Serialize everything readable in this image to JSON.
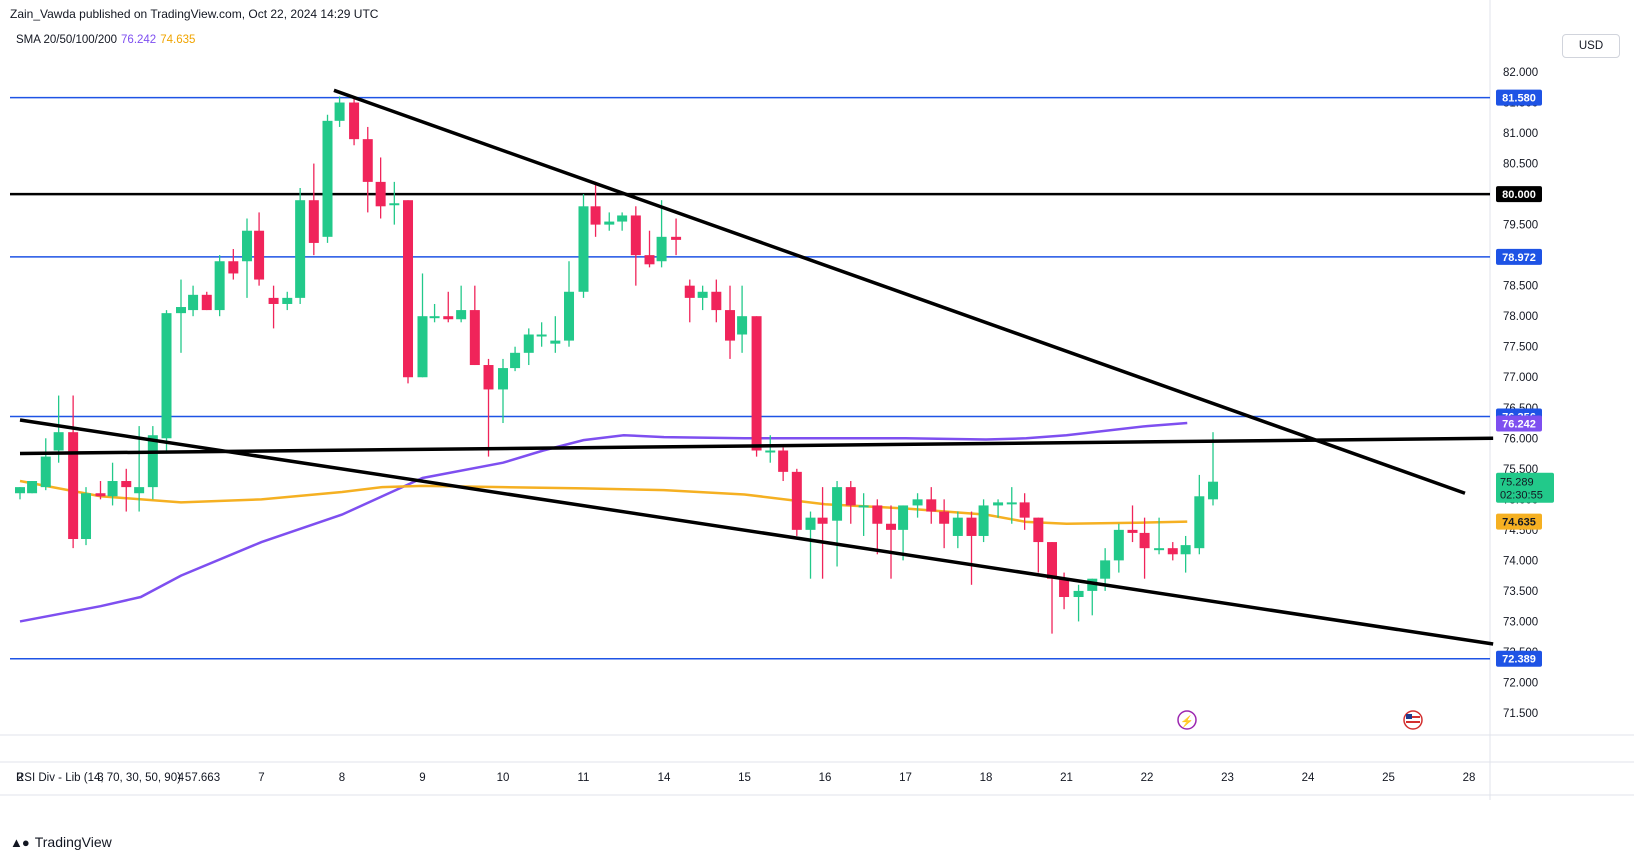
{
  "header": {
    "publisher": "Zain_Vawda published on TradingView.com, Oct 22, 2024 14:29 UTC"
  },
  "indicator": {
    "label": "SMA 20/50/100/200",
    "value_purple": "76.242",
    "value_orange": "74.635"
  },
  "rsi": {
    "label": "RSI Div - Lib (14, 70, 30, 50, 90)",
    "value": "57.663"
  },
  "currency": "USD",
  "brand": {
    "name": "TradingView"
  },
  "colors": {
    "up": "#22c98a",
    "down": "#f0245a",
    "blue_level": "#1e53e5",
    "black_level": "#000000",
    "sma_purple": "#7e4ff0",
    "sma_orange": "#f5b022",
    "price_badge": "#22c98a"
  },
  "chart_data": {
    "type": "candlestick",
    "instrument_currency": "USD",
    "y_range": [
      71.0,
      82.4
    ],
    "y_ticks": [
      "82.000",
      "81.500",
      "81.000",
      "80.500",
      "80.000",
      "79.500",
      "79.000",
      "78.500",
      "78.000",
      "77.500",
      "77.000",
      "76.500",
      "76.000",
      "75.500",
      "75.000",
      "74.500",
      "74.000",
      "73.500",
      "73.000",
      "72.500",
      "72.000",
      "71.500"
    ],
    "x_ticks": [
      "2",
      "3",
      "4",
      "7",
      "8",
      "9",
      "10",
      "11",
      "14",
      "15",
      "16",
      "17",
      "18",
      "21",
      "22",
      "23",
      "24",
      "25",
      "28"
    ],
    "horizontal_levels": [
      {
        "value": 81.58,
        "label": "81.580",
        "color": "blue"
      },
      {
        "value": 80.0,
        "label": "80.000",
        "color": "black"
      },
      {
        "value": 78.972,
        "label": "78.972",
        "color": "blue"
      },
      {
        "value": 76.356,
        "label": "76.356",
        "color": "blue"
      },
      {
        "value": 72.389,
        "label": "72.389",
        "color": "blue"
      }
    ],
    "trendlines": [
      {
        "from": [
          3.9,
          81.7
        ],
        "to": [
          17.95,
          75.1
        ]
      },
      {
        "from": [
          0,
          76.3
        ],
        "to": [
          18.3,
          72.63
        ]
      },
      {
        "from": [
          0,
          75.75
        ],
        "to": [
          18.3,
          76.0
        ]
      }
    ],
    "sma_purple": {
      "label": "76.242",
      "points": [
        [
          0,
          73.0
        ],
        [
          1,
          73.25
        ],
        [
          1.5,
          73.4
        ],
        [
          2,
          73.75
        ],
        [
          3,
          74.3
        ],
        [
          4,
          74.75
        ],
        [
          4.5,
          75.05
        ],
        [
          5,
          75.35
        ],
        [
          6,
          75.6
        ],
        [
          6.5,
          75.8
        ],
        [
          7,
          75.97
        ],
        [
          7.5,
          76.05
        ],
        [
          8,
          76.02
        ],
        [
          9,
          76.0
        ],
        [
          10,
          76.0
        ],
        [
          11,
          76.0
        ],
        [
          12,
          75.98
        ],
        [
          12.5,
          76.0
        ],
        [
          13,
          76.05
        ],
        [
          14,
          76.2
        ],
        [
          14.5,
          76.25
        ]
      ]
    },
    "sma_orange": {
      "label": "74.635",
      "points": [
        [
          0,
          75.3
        ],
        [
          1,
          75.05
        ],
        [
          2,
          74.95
        ],
        [
          3,
          75.0
        ],
        [
          4,
          75.12
        ],
        [
          4.5,
          75.2
        ],
        [
          5,
          75.22
        ],
        [
          6,
          75.2
        ],
        [
          7,
          75.18
        ],
        [
          8,
          75.15
        ],
        [
          9,
          75.08
        ],
        [
          10,
          74.92
        ],
        [
          11,
          74.85
        ],
        [
          12,
          74.75
        ],
        [
          12.5,
          74.63
        ],
        [
          13,
          74.6
        ],
        [
          14,
          74.62
        ],
        [
          14.5,
          74.635
        ]
      ]
    },
    "candles": [
      {
        "x": 0.0,
        "o": 75.1,
        "h": 75.2,
        "l": 75.0,
        "c": 75.2
      },
      {
        "x": 0.15,
        "o": 75.1,
        "h": 75.3,
        "l": 75.1,
        "c": 75.3
      },
      {
        "x": 0.32,
        "o": 75.2,
        "h": 76.0,
        "l": 75.15,
        "c": 75.7
      },
      {
        "x": 0.48,
        "o": 75.8,
        "h": 76.7,
        "l": 75.6,
        "c": 76.1
      },
      {
        "x": 0.66,
        "o": 76.1,
        "h": 76.7,
        "l": 74.2,
        "c": 74.35
      },
      {
        "x": 0.82,
        "o": 74.35,
        "h": 75.2,
        "l": 74.25,
        "c": 75.1
      },
      {
        "x": 1.0,
        "o": 75.1,
        "h": 75.3,
        "l": 75.0,
        "c": 75.05
      },
      {
        "x": 1.15,
        "o": 75.05,
        "h": 75.6,
        "l": 74.9,
        "c": 75.3
      },
      {
        "x": 1.32,
        "o": 75.3,
        "h": 75.5,
        "l": 74.8,
        "c": 75.2
      },
      {
        "x": 1.48,
        "o": 75.1,
        "h": 76.2,
        "l": 74.8,
        "c": 75.2
      },
      {
        "x": 1.65,
        "o": 75.2,
        "h": 76.2,
        "l": 75.0,
        "c": 76.05
      },
      {
        "x": 1.82,
        "o": 76.0,
        "h": 78.1,
        "l": 75.8,
        "c": 78.05
      },
      {
        "x": 2.0,
        "o": 78.05,
        "h": 78.6,
        "l": 77.4,
        "c": 78.15
      },
      {
        "x": 2.15,
        "o": 78.1,
        "h": 78.5,
        "l": 78.0,
        "c": 78.35
      },
      {
        "x": 2.32,
        "o": 78.35,
        "h": 78.4,
        "l": 78.1,
        "c": 78.1
      },
      {
        "x": 2.48,
        "o": 78.1,
        "h": 79.0,
        "l": 78.0,
        "c": 78.9
      },
      {
        "x": 2.65,
        "o": 78.9,
        "h": 79.1,
        "l": 78.6,
        "c": 78.7
      },
      {
        "x": 2.82,
        "o": 78.9,
        "h": 79.6,
        "l": 78.3,
        "c": 79.4
      },
      {
        "x": 2.97,
        "o": 79.4,
        "h": 79.7,
        "l": 78.5,
        "c": 78.6
      },
      {
        "x": 3.15,
        "o": 78.3,
        "h": 78.5,
        "l": 77.8,
        "c": 78.2
      },
      {
        "x": 3.32,
        "o": 78.2,
        "h": 78.4,
        "l": 78.1,
        "c": 78.3
      },
      {
        "x": 3.48,
        "o": 78.3,
        "h": 80.1,
        "l": 78.2,
        "c": 79.9
      },
      {
        "x": 3.65,
        "o": 79.9,
        "h": 80.5,
        "l": 79.0,
        "c": 79.2
      },
      {
        "x": 3.82,
        "o": 79.3,
        "h": 81.3,
        "l": 79.2,
        "c": 81.2
      },
      {
        "x": 3.97,
        "o": 81.2,
        "h": 81.6,
        "l": 81.1,
        "c": 81.5
      },
      {
        "x": 4.15,
        "o": 81.5,
        "h": 81.6,
        "l": 80.8,
        "c": 80.9
      },
      {
        "x": 4.32,
        "o": 80.9,
        "h": 81.1,
        "l": 79.7,
        "c": 80.2
      },
      {
        "x": 4.48,
        "o": 80.2,
        "h": 80.6,
        "l": 79.6,
        "c": 79.8
      },
      {
        "x": 4.65,
        "o": 79.85,
        "h": 80.2,
        "l": 79.5,
        "c": 79.85
      },
      {
        "x": 4.82,
        "o": 79.9,
        "h": 79.9,
        "l": 76.9,
        "c": 77.0
      },
      {
        "x": 5.0,
        "o": 77.0,
        "h": 78.7,
        "l": 77.0,
        "c": 78.0
      },
      {
        "x": 5.15,
        "o": 78.0,
        "h": 78.2,
        "l": 77.9,
        "c": 78.0
      },
      {
        "x": 5.32,
        "o": 78.0,
        "h": 78.4,
        "l": 77.9,
        "c": 77.95
      },
      {
        "x": 5.48,
        "o": 77.95,
        "h": 78.5,
        "l": 77.9,
        "c": 78.1
      },
      {
        "x": 5.65,
        "o": 78.1,
        "h": 78.5,
        "l": 77.2,
        "c": 77.2
      },
      {
        "x": 5.82,
        "o": 77.2,
        "h": 77.3,
        "l": 75.7,
        "c": 76.8
      },
      {
        "x": 6.0,
        "o": 76.8,
        "h": 77.3,
        "l": 76.25,
        "c": 77.15
      },
      {
        "x": 6.15,
        "o": 77.15,
        "h": 77.5,
        "l": 77.1,
        "c": 77.4
      },
      {
        "x": 6.32,
        "o": 77.4,
        "h": 77.8,
        "l": 77.2,
        "c": 77.7
      },
      {
        "x": 6.48,
        "o": 77.7,
        "h": 77.9,
        "l": 77.5,
        "c": 77.7
      },
      {
        "x": 6.65,
        "o": 77.55,
        "h": 78.0,
        "l": 77.4,
        "c": 77.6
      },
      {
        "x": 6.82,
        "o": 77.6,
        "h": 78.9,
        "l": 77.5,
        "c": 78.4
      },
      {
        "x": 7.0,
        "o": 78.4,
        "h": 80.0,
        "l": 78.3,
        "c": 79.8
      },
      {
        "x": 7.15,
        "o": 79.8,
        "h": 80.2,
        "l": 79.3,
        "c": 79.5
      },
      {
        "x": 7.32,
        "o": 79.5,
        "h": 79.7,
        "l": 79.4,
        "c": 79.55
      },
      {
        "x": 7.48,
        "o": 79.55,
        "h": 79.7,
        "l": 79.4,
        "c": 79.65
      },
      {
        "x": 7.65,
        "o": 79.65,
        "h": 79.8,
        "l": 78.5,
        "c": 79.0
      },
      {
        "x": 7.82,
        "o": 79.0,
        "h": 79.4,
        "l": 78.8,
        "c": 78.85
      },
      {
        "x": 7.97,
        "o": 78.9,
        "h": 79.9,
        "l": 78.8,
        "c": 79.3
      },
      {
        "x": 8.15,
        "o": 79.3,
        "h": 79.6,
        "l": 79.0,
        "c": 79.25
      },
      {
        "x": 8.32,
        "o": 78.5,
        "h": 78.6,
        "l": 77.9,
        "c": 78.3
      },
      {
        "x": 8.48,
        "o": 78.3,
        "h": 78.5,
        "l": 78.1,
        "c": 78.4
      },
      {
        "x": 8.65,
        "o": 78.4,
        "h": 78.6,
        "l": 77.9,
        "c": 78.1
      },
      {
        "x": 8.82,
        "o": 78.1,
        "h": 78.5,
        "l": 77.3,
        "c": 77.6
      },
      {
        "x": 8.97,
        "o": 77.7,
        "h": 78.5,
        "l": 77.4,
        "c": 78.0
      },
      {
        "x": 9.15,
        "o": 78.0,
        "h": 78.0,
        "l": 75.7,
        "c": 75.8
      },
      {
        "x": 9.32,
        "o": 75.8,
        "h": 76.05,
        "l": 75.6,
        "c": 75.8
      },
      {
        "x": 9.48,
        "o": 75.8,
        "h": 75.85,
        "l": 75.3,
        "c": 75.45
      },
      {
        "x": 9.65,
        "o": 75.45,
        "h": 75.5,
        "l": 74.4,
        "c": 74.5
      },
      {
        "x": 9.82,
        "o": 74.5,
        "h": 74.8,
        "l": 73.7,
        "c": 74.7
      },
      {
        "x": 9.97,
        "o": 74.7,
        "h": 75.2,
        "l": 73.7,
        "c": 74.6
      },
      {
        "x": 10.15,
        "o": 74.65,
        "h": 75.3,
        "l": 73.9,
        "c": 75.2
      },
      {
        "x": 10.32,
        "o": 75.2,
        "h": 75.3,
        "l": 74.6,
        "c": 74.9
      },
      {
        "x": 10.48,
        "o": 74.9,
        "h": 75.1,
        "l": 74.4,
        "c": 74.9
      },
      {
        "x": 10.65,
        "o": 74.9,
        "h": 75.0,
        "l": 74.1,
        "c": 74.6
      },
      {
        "x": 10.82,
        "o": 74.6,
        "h": 74.9,
        "l": 73.7,
        "c": 74.5
      },
      {
        "x": 10.97,
        "o": 74.5,
        "h": 74.9,
        "l": 74.0,
        "c": 74.9
      },
      {
        "x": 11.15,
        "o": 74.9,
        "h": 75.1,
        "l": 74.7,
        "c": 75.0
      },
      {
        "x": 11.32,
        "o": 75.0,
        "h": 75.2,
        "l": 74.6,
        "c": 74.8
      },
      {
        "x": 11.48,
        "o": 74.8,
        "h": 75.0,
        "l": 74.2,
        "c": 74.6
      },
      {
        "x": 11.65,
        "o": 74.4,
        "h": 74.8,
        "l": 74.2,
        "c": 74.7
      },
      {
        "x": 11.82,
        "o": 74.7,
        "h": 74.8,
        "l": 73.6,
        "c": 74.4
      },
      {
        "x": 11.97,
        "o": 74.4,
        "h": 75.0,
        "l": 74.3,
        "c": 74.9
      },
      {
        "x": 12.15,
        "o": 74.9,
        "h": 75.0,
        "l": 74.7,
        "c": 74.95
      },
      {
        "x": 12.32,
        "o": 74.95,
        "h": 75.2,
        "l": 74.6,
        "c": 74.95
      },
      {
        "x": 12.48,
        "o": 74.95,
        "h": 75.1,
        "l": 74.5,
        "c": 74.7
      },
      {
        "x": 12.65,
        "o": 74.7,
        "h": 74.7,
        "l": 73.8,
        "c": 74.3
      },
      {
        "x": 12.82,
        "o": 74.3,
        "h": 74.3,
        "l": 72.8,
        "c": 73.7
      },
      {
        "x": 12.97,
        "o": 73.7,
        "h": 73.8,
        "l": 73.2,
        "c": 73.4
      },
      {
        "x": 13.15,
        "o": 73.4,
        "h": 73.6,
        "l": 73.0,
        "c": 73.5
      },
      {
        "x": 13.32,
        "o": 73.5,
        "h": 73.7,
        "l": 73.1,
        "c": 73.7
      },
      {
        "x": 13.48,
        "o": 73.7,
        "h": 74.2,
        "l": 73.5,
        "c": 74.0
      },
      {
        "x": 13.65,
        "o": 74.0,
        "h": 74.6,
        "l": 73.8,
        "c": 74.5
      },
      {
        "x": 13.82,
        "o": 74.5,
        "h": 74.9,
        "l": 74.3,
        "c": 74.45
      },
      {
        "x": 13.97,
        "o": 74.45,
        "h": 74.7,
        "l": 73.7,
        "c": 74.2
      },
      {
        "x": 14.15,
        "o": 74.2,
        "h": 74.7,
        "l": 74.1,
        "c": 74.2
      },
      {
        "x": 14.32,
        "o": 74.2,
        "h": 74.3,
        "l": 74.0,
        "c": 74.1
      },
      {
        "x": 14.48,
        "o": 74.1,
        "h": 74.4,
        "l": 73.8,
        "c": 74.25
      },
      {
        "x": 14.65,
        "o": 74.2,
        "h": 75.4,
        "l": 74.1,
        "c": 75.05
      },
      {
        "x": 14.82,
        "o": 75.0,
        "h": 76.1,
        "l": 74.9,
        "c": 75.289
      }
    ],
    "last_price": {
      "value": 75.289,
      "label": "75.289",
      "countdown": "02:30:55"
    }
  }
}
